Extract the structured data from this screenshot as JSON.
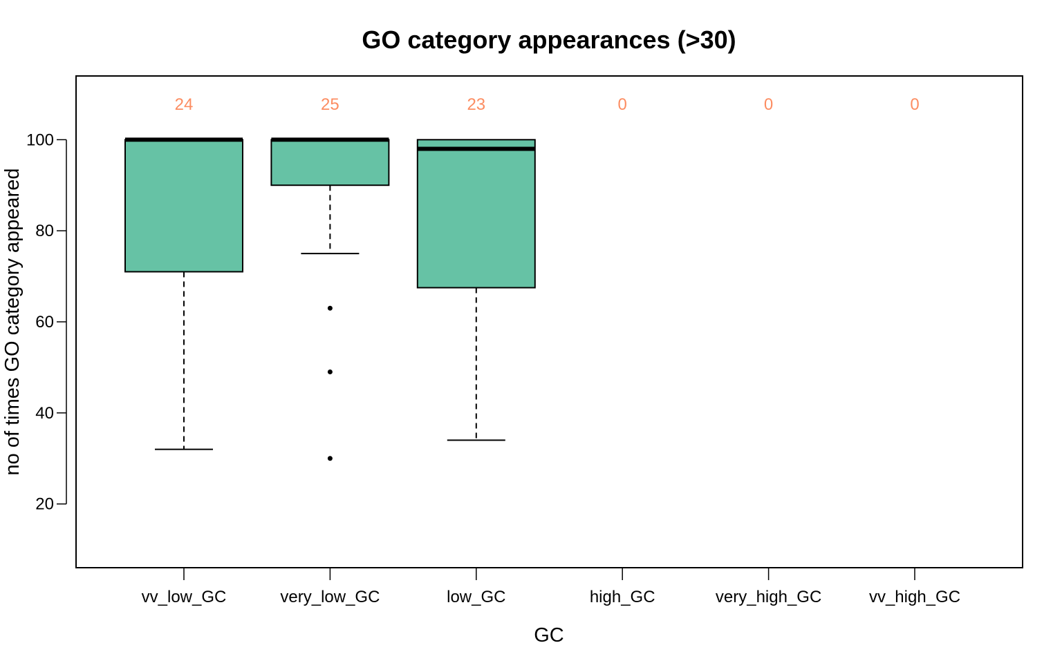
{
  "chart_data": {
    "type": "box",
    "title": "GO category appearances (>30)",
    "xlabel": "GC",
    "ylabel": "no of times GO category appeared",
    "categories": [
      "vv_low_GC",
      "very_low_GC",
      "low_GC",
      "high_GC",
      "very_high_GC",
      "vv_high_GC"
    ],
    "counts": [
      "24",
      "25",
      "23",
      "0",
      "0",
      "0"
    ],
    "ylim": [
      6,
      114
    ],
    "yticks": [
      "20",
      "40",
      "60",
      "80",
      "100"
    ],
    "boxes": [
      {
        "category": "vv_low_GC",
        "whisker_low": 32,
        "q1": 71,
        "median": 100,
        "q3": 100,
        "whisker_high": 100,
        "outliers": []
      },
      {
        "category": "very_low_GC",
        "whisker_low": 75,
        "q1": 90,
        "median": 100,
        "q3": 100,
        "whisker_high": 100,
        "outliers": [
          63,
          49,
          30
        ]
      },
      {
        "category": "low_GC",
        "whisker_low": 34,
        "q1": 67.5,
        "median": 98,
        "q3": 100,
        "whisker_high": 100,
        "outliers": []
      },
      null,
      null,
      null
    ],
    "colors": {
      "box_fill": "#66c2a5",
      "count_text": "#fc8d62",
      "line": "#000000"
    }
  }
}
